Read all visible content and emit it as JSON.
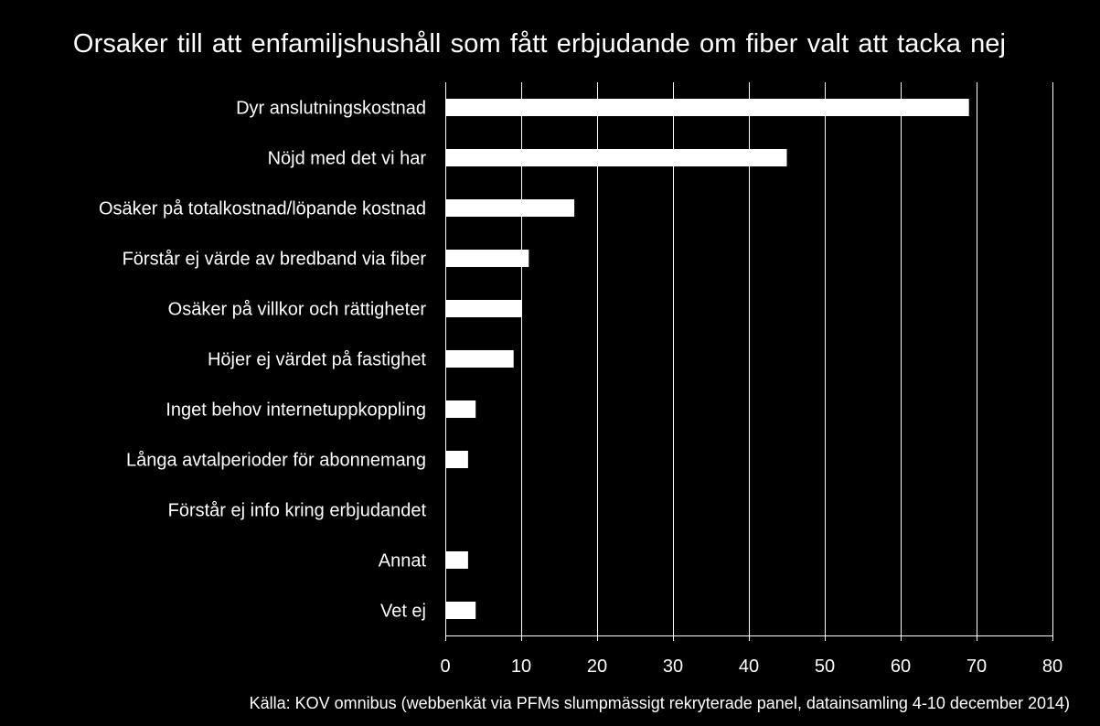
{
  "chart_data": {
    "type": "bar",
    "orientation": "horizontal",
    "title": "Orsaker till att enfamiljshushåll som fått erbjudande om fiber valt att tacka nej",
    "categories": [
      "Dyr anslutningskostnad",
      "Nöjd med det vi har",
      "Osäker på totalkostnad/löpande kostnad",
      "Förstår ej värde av bredband via fiber",
      "Osäker på villkor och rättigheter",
      "Höjer ej värdet på fastighet",
      "Inget behov internetuppkoppling",
      "Långa avtalperioder för abonnemang",
      "Förstår ej info kring erbjudandet",
      "Annat",
      "Vet ej"
    ],
    "values": [
      69,
      45,
      17,
      11,
      10,
      9,
      4,
      3,
      0,
      3,
      4
    ],
    "xlim": [
      0,
      80
    ],
    "xticks": [
      0,
      10,
      20,
      30,
      40,
      50,
      60,
      70,
      80
    ],
    "grid": "vertical",
    "legend": "none",
    "source": "Källa: KOV omnibus (webbenkät via PFMs slumpmässigt rekryterade panel, datainsamling 4-10 december 2014)"
  },
  "colors": {
    "background": "#000000",
    "bar": "#ffffff",
    "text": "#ffffff",
    "grid": "#ffffff"
  }
}
